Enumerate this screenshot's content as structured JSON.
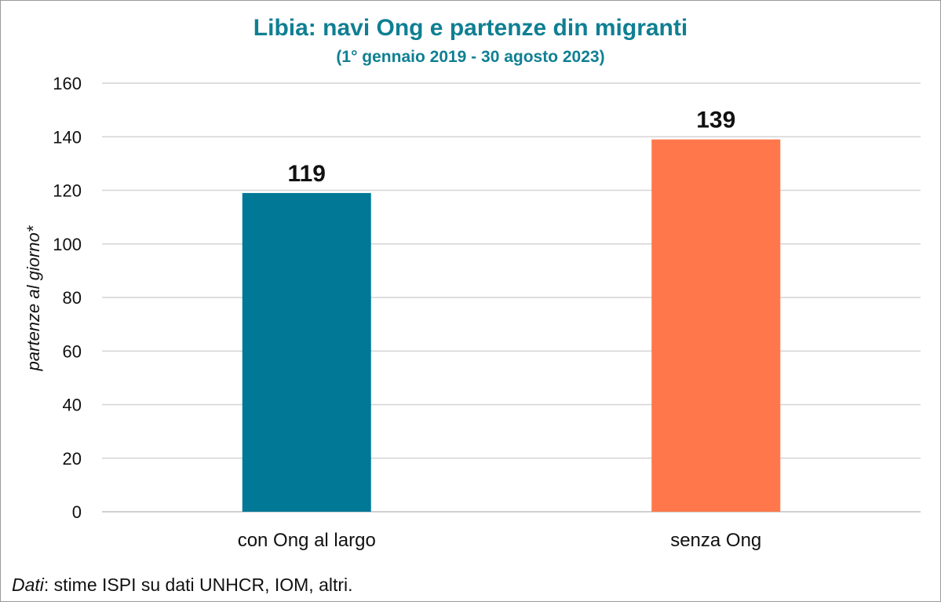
{
  "chart_data": {
    "type": "bar",
    "title": "Libia: navi Ong e partenze din migranti",
    "subtitle": "(1° gennaio 2019 - 30 agosto 2023)",
    "ylabel": "partenze al giorno*",
    "xlabel": "",
    "categories": [
      "con Ong al largo",
      "senza Ong"
    ],
    "values": [
      119,
      139
    ],
    "data_labels": [
      "119",
      "139"
    ],
    "colors": [
      "#007896",
      "#ff774a"
    ],
    "ylim": [
      0,
      160
    ],
    "yticks": [
      0,
      20,
      40,
      60,
      80,
      100,
      120,
      140,
      160
    ],
    "grid": true,
    "legend": "none"
  },
  "source": {
    "label": "Dati",
    "text": ": stime ISPI su dati UNHCR, IOM, altri."
  }
}
